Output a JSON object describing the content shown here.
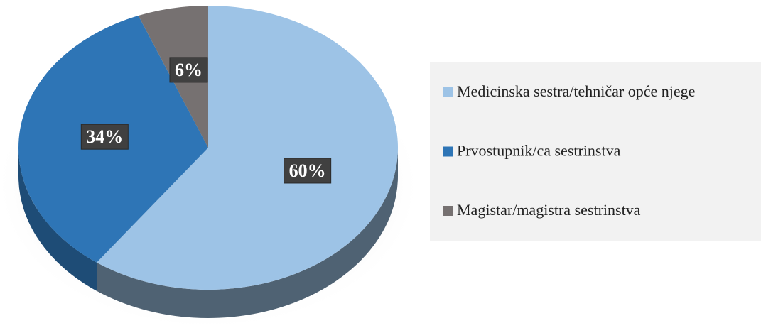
{
  "chart_data": {
    "type": "pie",
    "categories": [
      "Medicinska sestra/tehničar opće njege",
      "Prvostupnik/ca sestrinstva",
      "Magistar/magistra sestrinstva"
    ],
    "values": [
      60,
      34,
      6
    ],
    "value_labels": [
      "60%",
      "34%",
      "6%"
    ],
    "colors": [
      "#9dc3e6",
      "#2e75b6",
      "#767171"
    ],
    "legend": "right"
  }
}
